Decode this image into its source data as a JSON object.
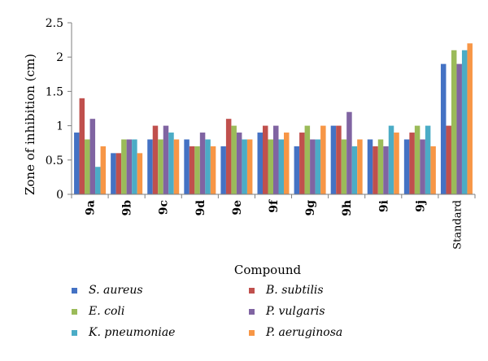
{
  "chart_data": {
    "type": "bar",
    "title": "",
    "xlabel": "Compound",
    "ylabel": "Zone of inhibition (cm)",
    "ylim": [
      0,
      2.5
    ],
    "yticks": [
      "0",
      "0.5",
      "1",
      "1.5",
      "2",
      "2.5"
    ],
    "grid": false,
    "legend_position": "bottom",
    "categories": [
      "9a",
      "9b",
      "9c",
      "9d",
      "9e",
      "9f",
      "9g",
      "9h",
      "9i",
      "9j",
      "Standard"
    ],
    "series": [
      {
        "name": "S. aureus",
        "color": "#4472C4",
        "values": [
          0.9,
          0.6,
          0.8,
          0.8,
          0.7,
          0.9,
          0.7,
          1.0,
          0.8,
          0.8,
          1.9
        ]
      },
      {
        "name": "B. subtilis",
        "color": "#C0504D",
        "values": [
          1.4,
          0.6,
          1.0,
          0.7,
          1.1,
          1.0,
          0.9,
          1.0,
          0.7,
          0.9,
          1.0
        ]
      },
      {
        "name": "E. coli",
        "color": "#9BBB59",
        "values": [
          0.8,
          0.8,
          0.8,
          0.7,
          1.0,
          0.8,
          1.0,
          0.8,
          0.8,
          1.0,
          2.1
        ]
      },
      {
        "name": "P. vulgaris",
        "color": "#8064A2",
        "values": [
          1.1,
          0.8,
          1.0,
          0.9,
          0.9,
          1.0,
          0.8,
          1.2,
          0.7,
          0.8,
          1.9
        ]
      },
      {
        "name": "K. pneumoniae",
        "color": "#4BACC6",
        "values": [
          0.4,
          0.8,
          0.9,
          0.8,
          0.8,
          0.8,
          0.8,
          0.7,
          1.0,
          1.0,
          2.1
        ]
      },
      {
        "name": "P. aeruginosa",
        "color": "#F79646",
        "values": [
          0.7,
          0.6,
          0.8,
          0.7,
          0.8,
          0.9,
          1.0,
          0.8,
          0.9,
          0.7,
          2.2
        ]
      }
    ]
  }
}
